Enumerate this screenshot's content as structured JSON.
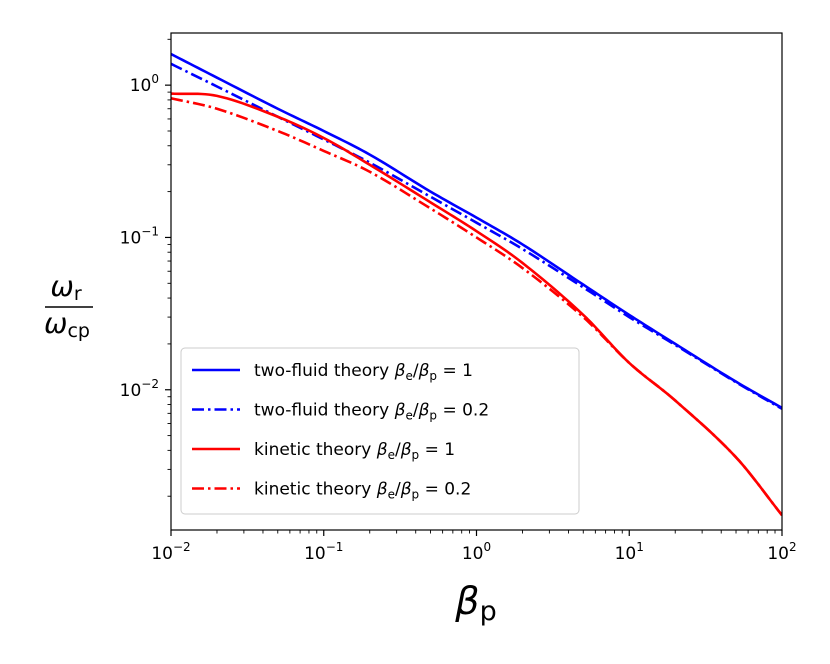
{
  "chart_data": {
    "type": "line",
    "xscale": "log",
    "yscale": "log",
    "xlim": [
      0.01,
      100
    ],
    "ylim": [
      0.0012,
      2.2
    ],
    "xlabel": {
      "main": "β",
      "sub": "p"
    },
    "ylabel": {
      "num": "ω",
      "num_sub": "r",
      "den": "ω",
      "den_sub": "cp"
    },
    "x_ticks": [
      {
        "value": 0.01,
        "base": "10",
        "exp": "−2"
      },
      {
        "value": 0.1,
        "base": "10",
        "exp": "−1"
      },
      {
        "value": 1,
        "base": "10",
        "exp": "0"
      },
      {
        "value": 10,
        "base": "10",
        "exp": "1"
      },
      {
        "value": 100,
        "base": "10",
        "exp": "2"
      }
    ],
    "y_ticks": [
      {
        "value": 0.01,
        "base": "10",
        "exp": "−2"
      },
      {
        "value": 0.1,
        "base": "10",
        "exp": "−1"
      },
      {
        "value": 1,
        "base": "10",
        "exp": "0"
      }
    ],
    "grid": false,
    "legend_position": "lower-left",
    "series": [
      {
        "name": "two-fluid theory βe/βp = 1",
        "legend": {
          "prefix": "two-fluid theory ",
          "ratio": "1"
        },
        "color": "#0000ff",
        "style": "solid",
        "x": [
          0.01,
          0.02,
          0.05,
          0.1,
          0.2,
          0.5,
          1,
          2,
          5,
          10,
          20,
          50,
          100
        ],
        "y": [
          1.6,
          1.12,
          0.7,
          0.5,
          0.35,
          0.2,
          0.135,
          0.09,
          0.049,
          0.031,
          0.02,
          0.0113,
          0.0076
        ]
      },
      {
        "name": "two-fluid theory βe/βp = 0.2",
        "legend": {
          "prefix": "two-fluid theory ",
          "ratio": "0.2"
        },
        "color": "#0000ff",
        "style": "dashdot",
        "x": [
          0.01,
          0.02,
          0.05,
          0.1,
          0.2,
          0.5,
          1,
          2,
          5,
          10,
          20,
          50,
          100
        ],
        "y": [
          1.38,
          0.98,
          0.62,
          0.44,
          0.31,
          0.185,
          0.125,
          0.084,
          0.047,
          0.03,
          0.0197,
          0.0112,
          0.0075
        ]
      },
      {
        "name": "kinetic theory βe/βp = 1",
        "legend": {
          "prefix": "kinetic theory ",
          "ratio": "1"
        },
        "color": "#ff0000",
        "style": "solid",
        "x": [
          0.01,
          0.02,
          0.05,
          0.1,
          0.2,
          0.5,
          1,
          2,
          5,
          10,
          20,
          50,
          100
        ],
        "y": [
          0.88,
          0.85,
          0.62,
          0.45,
          0.3,
          0.17,
          0.11,
          0.068,
          0.031,
          0.015,
          0.0085,
          0.0036,
          0.0015
        ]
      },
      {
        "name": "kinetic theory βe/βp = 0.2",
        "legend": {
          "prefix": "kinetic theory ",
          "ratio": "0.2"
        },
        "color": "#ff0000",
        "style": "dashdot",
        "x": [
          0.01,
          0.02,
          0.05,
          0.1,
          0.2,
          0.5,
          1,
          2,
          5,
          10,
          20,
          50,
          100
        ],
        "y": [
          0.82,
          0.7,
          0.5,
          0.37,
          0.27,
          0.155,
          0.1,
          0.063,
          0.03,
          0.015,
          0.0085,
          0.0036,
          0.0015
        ]
      }
    ]
  }
}
